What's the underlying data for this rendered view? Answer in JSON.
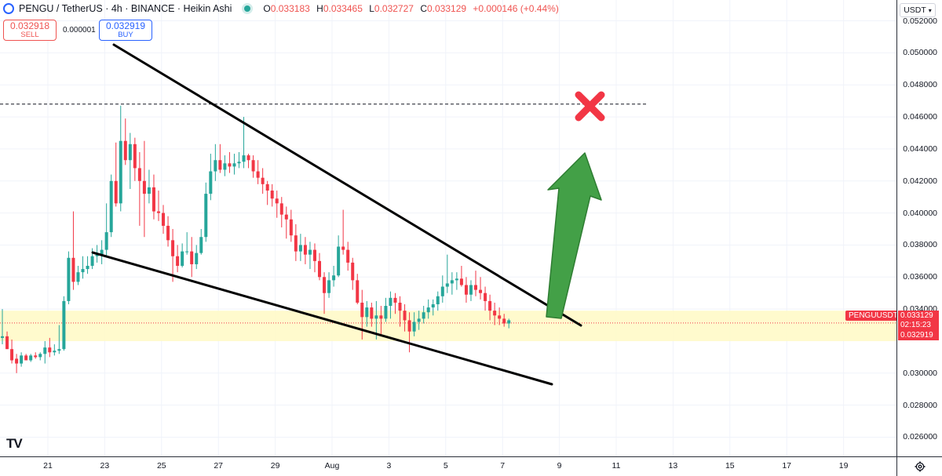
{
  "header": {
    "symbol": "PENGU / TetherUS · 4h · BINANCE · Heikin Ashi",
    "ohlc": {
      "o_label": "O",
      "o": "0.033183",
      "h_label": "H",
      "h": "0.033465",
      "l_label": "L",
      "l": "0.032727",
      "c_label": "C",
      "c": "0.033129",
      "change": "+0.000146 (+0.44%)"
    }
  },
  "trade": {
    "sell_price": "0.032918",
    "sell_label": "SELL",
    "spread": "0.000001",
    "buy_price": "0.032919",
    "buy_label": "BUY"
  },
  "price_axis": {
    "currency": "USDT",
    "labels": [
      "0.052000",
      "0.050000",
      "0.048000",
      "0.046000",
      "0.044000",
      "0.042000",
      "0.040000",
      "0.038000",
      "0.036000",
      "0.034000",
      "0.030000",
      "0.028000",
      "0.026000"
    ],
    "symbol_tag": "PENGUUSDT",
    "current_price": "0.033129",
    "countdown": "02:15:23",
    "bid_price": "0.032919"
  },
  "time_axis": {
    "labels": [
      "21",
      "23",
      "25",
      "27",
      "29",
      "Aug",
      "3",
      "5",
      "7",
      "9",
      "11",
      "13",
      "15",
      "17",
      "19"
    ]
  },
  "colors": {
    "up": "#26a69a",
    "down": "#f23645",
    "zone": "#fff9c4",
    "arrow": "#43a047",
    "cross": "#f23645",
    "accent": "#2962ff"
  },
  "icons": {
    "logo": "tradingview-logo",
    "settings": "gear-icon",
    "target": "cross-mark-icon",
    "arrow": "up-arrow-icon"
  },
  "chart_data": {
    "type": "candlestick",
    "style": "Heikin Ashi",
    "interval": "4h",
    "currency": "USDT",
    "ylim": [
      0.0248,
      0.0533
    ],
    "x_ticks": [
      "21",
      "23",
      "25",
      "27",
      "29",
      "Aug",
      "3",
      "5",
      "7",
      "9",
      "11",
      "13",
      "15",
      "17",
      "19"
    ],
    "resistance_level": 0.0468,
    "support_zone": [
      0.032,
      0.0339
    ],
    "candles": [
      [
        0.0322,
        0.034,
        0.0318,
        0.0323
      ],
      [
        0.0323,
        0.0326,
        0.0315,
        0.0315
      ],
      [
        0.0315,
        0.0321,
        0.0306,
        0.0308
      ],
      [
        0.0309,
        0.0312,
        0.03,
        0.0306
      ],
      [
        0.0306,
        0.0313,
        0.0304,
        0.0311
      ],
      [
        0.0311,
        0.0312,
        0.0308,
        0.0308
      ],
      [
        0.0308,
        0.0312,
        0.0307,
        0.0311
      ],
      [
        0.0311,
        0.0313,
        0.0309,
        0.031
      ],
      [
        0.031,
        0.0313,
        0.0308,
        0.0312
      ],
      [
        0.0312,
        0.032,
        0.0306,
        0.0316
      ],
      [
        0.0316,
        0.0322,
        0.031,
        0.0313
      ],
      [
        0.0313,
        0.0318,
        0.0311,
        0.0314
      ],
      [
        0.0314,
        0.033,
        0.0312,
        0.0315
      ],
      [
        0.0315,
        0.0348,
        0.0314,
        0.0345
      ],
      [
        0.0345,
        0.0376,
        0.0343,
        0.0372
      ],
      [
        0.0372,
        0.0401,
        0.0352,
        0.0357
      ],
      [
        0.0357,
        0.0367,
        0.0355,
        0.0363
      ],
      [
        0.0363,
        0.0373,
        0.0359,
        0.0365
      ],
      [
        0.0365,
        0.0373,
        0.0362,
        0.0367
      ],
      [
        0.0367,
        0.0378,
        0.0365,
        0.0373
      ],
      [
        0.0373,
        0.038,
        0.0369,
        0.0374
      ],
      [
        0.0374,
        0.0383,
        0.0368,
        0.0377
      ],
      [
        0.0377,
        0.0406,
        0.0373,
        0.0388
      ],
      [
        0.0388,
        0.0424,
        0.0385,
        0.042
      ],
      [
        0.042,
        0.0444,
        0.0404,
        0.0406
      ],
      [
        0.0406,
        0.0467,
        0.0401,
        0.0445
      ],
      [
        0.0445,
        0.0459,
        0.043,
        0.0433
      ],
      [
        0.0433,
        0.045,
        0.0415,
        0.0443
      ],
      [
        0.0443,
        0.0447,
        0.042,
        0.0428
      ],
      [
        0.0428,
        0.0438,
        0.0392,
        0.042
      ],
      [
        0.042,
        0.0445,
        0.0385,
        0.0412
      ],
      [
        0.0412,
        0.0427,
        0.0406,
        0.0416
      ],
      [
        0.0416,
        0.0424,
        0.0396,
        0.0401
      ],
      [
        0.0401,
        0.0414,
        0.0395,
        0.04
      ],
      [
        0.04,
        0.0405,
        0.0387,
        0.0392
      ],
      [
        0.0392,
        0.0398,
        0.0379,
        0.0383
      ],
      [
        0.0383,
        0.039,
        0.0357,
        0.0373
      ],
      [
        0.0373,
        0.038,
        0.0363,
        0.0367
      ],
      [
        0.0367,
        0.0381,
        0.0366,
        0.0376
      ],
      [
        0.0376,
        0.0388,
        0.0374,
        0.0376
      ],
      [
        0.0376,
        0.0385,
        0.036,
        0.0368
      ],
      [
        0.0368,
        0.038,
        0.0365,
        0.0375
      ],
      [
        0.0375,
        0.039,
        0.0374,
        0.0385
      ],
      [
        0.0385,
        0.0419,
        0.0382,
        0.0412
      ],
      [
        0.0412,
        0.0437,
        0.0408,
        0.0426
      ],
      [
        0.0426,
        0.0443,
        0.042,
        0.0433
      ],
      [
        0.0433,
        0.0443,
        0.0425,
        0.0427
      ],
      [
        0.0427,
        0.0436,
        0.0423,
        0.0431
      ],
      [
        0.0431,
        0.0438,
        0.0425,
        0.0429
      ],
      [
        0.0429,
        0.0437,
        0.0424,
        0.0431
      ],
      [
        0.0431,
        0.0438,
        0.0428,
        0.0432
      ],
      [
        0.0432,
        0.046,
        0.0428,
        0.0436
      ],
      [
        0.0436,
        0.0437,
        0.0428,
        0.0433
      ],
      [
        0.0433,
        0.0436,
        0.0422,
        0.0426
      ],
      [
        0.0426,
        0.0433,
        0.0418,
        0.0422
      ],
      [
        0.0422,
        0.0428,
        0.0412,
        0.0418
      ],
      [
        0.0418,
        0.042,
        0.0405,
        0.0414
      ],
      [
        0.0414,
        0.0418,
        0.0404,
        0.0409
      ],
      [
        0.0409,
        0.0414,
        0.0397,
        0.0406
      ],
      [
        0.0406,
        0.041,
        0.0391,
        0.0399
      ],
      [
        0.0399,
        0.0404,
        0.0384,
        0.0396
      ],
      [
        0.0396,
        0.0402,
        0.0382,
        0.0386
      ],
      [
        0.0386,
        0.0393,
        0.037,
        0.0376
      ],
      [
        0.0376,
        0.0387,
        0.037,
        0.038
      ],
      [
        0.038,
        0.0385,
        0.0368,
        0.0374
      ],
      [
        0.0374,
        0.0382,
        0.0365,
        0.0377
      ],
      [
        0.0377,
        0.0381,
        0.0363,
        0.037
      ],
      [
        0.037,
        0.0375,
        0.0358,
        0.036
      ],
      [
        0.036,
        0.0363,
        0.0337,
        0.035
      ],
      [
        0.035,
        0.0363,
        0.0347,
        0.0358
      ],
      [
        0.0358,
        0.0367,
        0.0354,
        0.0361
      ],
      [
        0.0361,
        0.0386,
        0.036,
        0.0379
      ],
      [
        0.0379,
        0.0402,
        0.0374,
        0.0377
      ],
      [
        0.0377,
        0.0382,
        0.0364,
        0.0369
      ],
      [
        0.0369,
        0.0372,
        0.0352,
        0.0358
      ],
      [
        0.0358,
        0.0362,
        0.0343,
        0.0344
      ],
      [
        0.0344,
        0.0352,
        0.0321,
        0.0335
      ],
      [
        0.0335,
        0.0345,
        0.0329,
        0.0341
      ],
      [
        0.0341,
        0.0344,
        0.0329,
        0.0334
      ],
      [
        0.0334,
        0.0345,
        0.0321,
        0.0336
      ],
      [
        0.0336,
        0.0342,
        0.0323,
        0.0334
      ],
      [
        0.0334,
        0.0347,
        0.0332,
        0.0342
      ],
      [
        0.0342,
        0.0351,
        0.0334,
        0.0347
      ],
      [
        0.0347,
        0.035,
        0.0337,
        0.0344
      ],
      [
        0.0344,
        0.0348,
        0.0329,
        0.0339
      ],
      [
        0.0339,
        0.0343,
        0.0326,
        0.0333
      ],
      [
        0.0333,
        0.0338,
        0.0313,
        0.0326
      ],
      [
        0.0326,
        0.0338,
        0.0323,
        0.0332
      ],
      [
        0.0332,
        0.0339,
        0.0327,
        0.0334
      ],
      [
        0.0334,
        0.0342,
        0.0331,
        0.0338
      ],
      [
        0.0338,
        0.0346,
        0.0334,
        0.0341
      ],
      [
        0.0341,
        0.0346,
        0.0336,
        0.0343
      ],
      [
        0.0343,
        0.0351,
        0.0339,
        0.0348
      ],
      [
        0.0348,
        0.0361,
        0.0344,
        0.0354
      ],
      [
        0.0354,
        0.0374,
        0.035,
        0.0356
      ],
      [
        0.0356,
        0.0363,
        0.0349,
        0.0358
      ],
      [
        0.0358,
        0.0363,
        0.0352,
        0.0359
      ],
      [
        0.0359,
        0.0367,
        0.0354,
        0.0355
      ],
      [
        0.0355,
        0.036,
        0.0344,
        0.0349
      ],
      [
        0.0349,
        0.0358,
        0.0345,
        0.0355
      ],
      [
        0.0355,
        0.0364,
        0.0348,
        0.0352
      ],
      [
        0.0352,
        0.036,
        0.0346,
        0.035
      ],
      [
        0.035,
        0.0354,
        0.0339,
        0.0345
      ],
      [
        0.0345,
        0.0349,
        0.0333,
        0.0339
      ],
      [
        0.0339,
        0.0344,
        0.033,
        0.0336
      ],
      [
        0.0336,
        0.0341,
        0.033,
        0.0334
      ],
      [
        0.0334,
        0.0337,
        0.0329,
        0.0331
      ],
      [
        0.0331,
        0.0334,
        0.0328,
        0.0333
      ]
    ]
  }
}
